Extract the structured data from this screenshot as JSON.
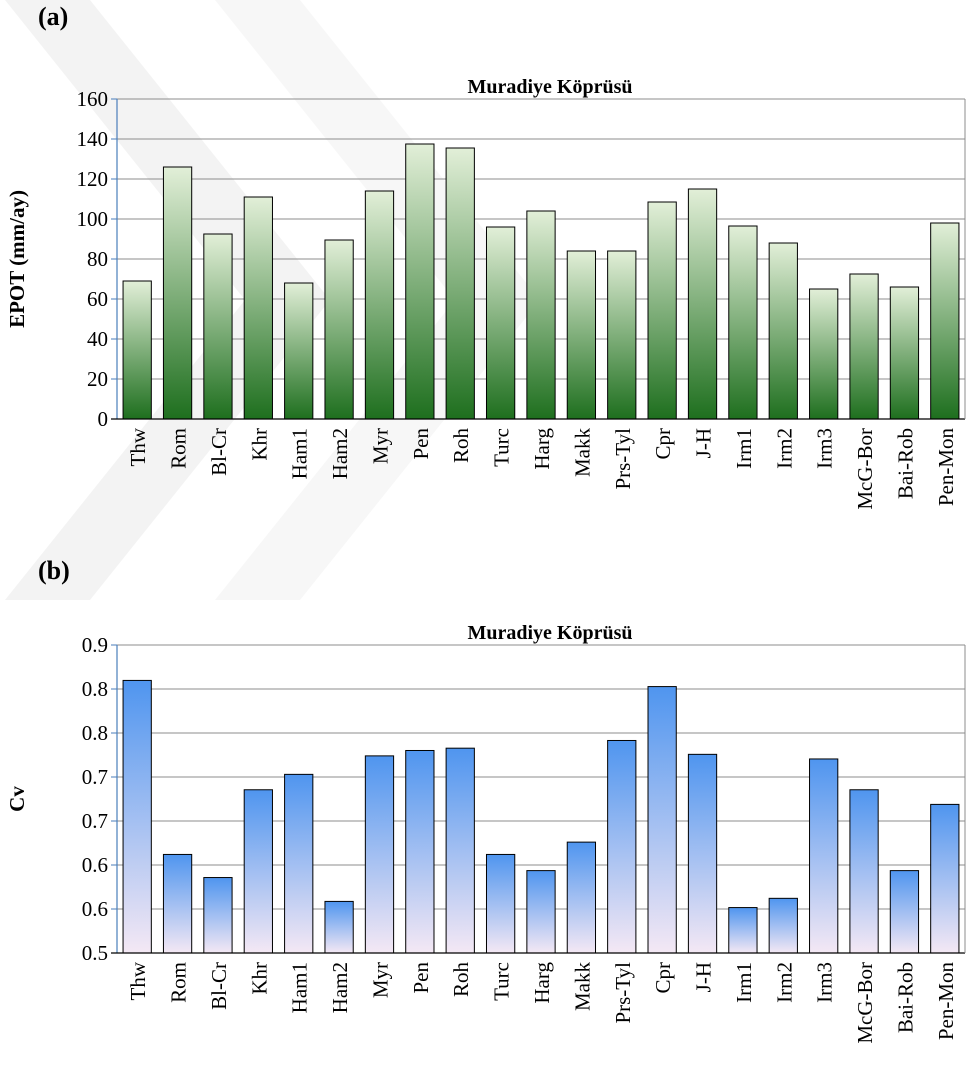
{
  "panels": [
    {
      "label": "(a)"
    },
    {
      "label": "(b)"
    }
  ],
  "chart_data": [
    {
      "type": "bar",
      "title": "Muradiye Köprüsü",
      "xlabel": "",
      "ylabel": "EPOT (mm/ay)",
      "ylim": [
        0,
        160
      ],
      "yticks": [
        "0",
        "20",
        "40",
        "60",
        "80",
        "100",
        "120",
        "140",
        "160"
      ],
      "grid": true,
      "categories": [
        "Thw",
        "Rom",
        "Bl-Cr",
        "Khr",
        "Ham1",
        "Ham2",
        "Myr",
        "Pen",
        "Roh",
        "Turc",
        "Harg",
        "Makk",
        "Prs-Tyl",
        "Cpr",
        "J-H",
        "Irm1",
        "Irm2",
        "Irm3",
        "McG-Bor",
        "Bai-Rob",
        "Pen-Mon"
      ],
      "values": [
        69,
        126,
        92.5,
        111,
        68,
        89.5,
        114,
        137.5,
        135.5,
        96,
        104,
        84,
        84,
        108.5,
        115,
        96.5,
        88,
        65,
        72.5,
        66,
        98
      ],
      "bar_color_top": "#e2efd8",
      "bar_color_bottom": "#1e6f1e"
    },
    {
      "type": "bar",
      "title": "Muradiye Köprüsü",
      "xlabel": "",
      "ylabel": "Cv",
      "ylim": [
        0.5,
        0.9
      ],
      "yticks": [
        "0.5",
        "0.6",
        "0.6",
        "0.7",
        "0.7",
        "0.8",
        "0.8",
        "0.9"
      ],
      "grid": true,
      "categories": [
        "Thw",
        "Rom",
        "Bl-Cr",
        "Khr",
        "Ham1",
        "Ham2",
        "Myr",
        "Pen",
        "Roh",
        "Turc",
        "Harg",
        "Makk",
        "Prs-Tyl",
        "Cpr",
        "J-H",
        "Irm1",
        "Irm2",
        "Irm3",
        "McG-Bor",
        "Bai-Rob",
        "Pen-Mon"
      ],
      "values": [
        0.854,
        0.628,
        0.598,
        0.712,
        0.732,
        0.567,
        0.756,
        0.763,
        0.766,
        0.628,
        0.607,
        0.644,
        0.776,
        0.846,
        0.758,
        0.559,
        0.571,
        0.752,
        0.712,
        0.607,
        0.693
      ],
      "bar_color_top": "#4f95ef",
      "bar_color_bottom": "#f4e8f4"
    }
  ]
}
